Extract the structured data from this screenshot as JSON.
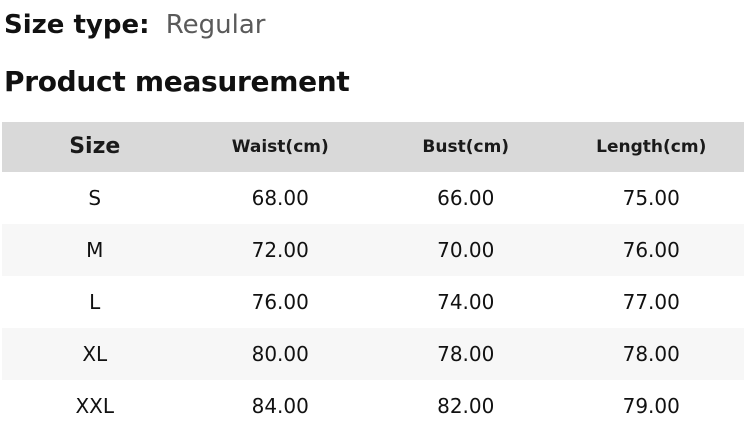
{
  "page": {
    "size_type": {
      "label": "Size type:",
      "value": "Regular"
    },
    "section_title": "Product measurement"
  },
  "table": {
    "headers": [
      "Size",
      "Waist(cm)",
      "Bust(cm)",
      "Length(cm)"
    ],
    "rows": [
      {
        "size": "S",
        "waist": "68.00",
        "bust": "66.00",
        "length": "75.00"
      },
      {
        "size": "M",
        "waist": "72.00",
        "bust": "70.00",
        "length": "76.00"
      },
      {
        "size": "L",
        "waist": "76.00",
        "bust": "74.00",
        "length": "77.00"
      },
      {
        "size": "XL",
        "waist": "80.00",
        "bust": "78.00",
        "length": "78.00"
      },
      {
        "size": "XXL",
        "waist": "84.00",
        "bust": "82.00",
        "length": "79.00"
      }
    ]
  },
  "colors": {
    "header_bg": "#d9d9d9",
    "row_alt_bg": "#f7f7f7",
    "text": "#111111",
    "muted_text": "#5a5a5a"
  }
}
